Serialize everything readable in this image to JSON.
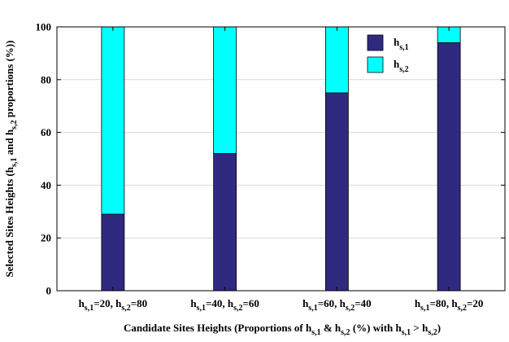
{
  "chart_data": {
    "type": "bar",
    "stacked": true,
    "categories": [
      {
        "h1": "h",
        "s1": "s,1",
        "v1": "=20, ",
        "h2": "h",
        "s2": "s,2",
        "v2": "=80"
      },
      {
        "h1": "h",
        "s1": "s,1",
        "v1": "=40, ",
        "h2": "h",
        "s2": "s,2",
        "v2": "=60"
      },
      {
        "h1": "h",
        "s1": "s,1",
        "v1": "=60, ",
        "h2": "h",
        "s2": "s,2",
        "v2": "=40"
      },
      {
        "h1": "h",
        "s1": "s,1",
        "v1": "=80, ",
        "h2": "h",
        "s2": "s,2",
        "v2": "=20"
      }
    ],
    "series": [
      {
        "name_base": "h",
        "name_sub": "s,1",
        "color": "#2f2a7f",
        "values": [
          29,
          52,
          75,
          94
        ]
      },
      {
        "name_base": "h",
        "name_sub": "s,2",
        "color": "#00ffff",
        "values": [
          71,
          48,
          25,
          6
        ]
      }
    ],
    "ylim": [
      0,
      100
    ],
    "yticks": [
      "0",
      "20",
      "40",
      "60",
      "80",
      "100"
    ],
    "grid": "horizontal",
    "legend_position": "top-right",
    "xlabel": {
      "p1": "Candidate Sites Heights (Proportions of h",
      "s1": "s,1",
      "p2": " & h",
      "s2": "s,2",
      "p3": " (%)  with h",
      "s3": "s,1",
      "p4": " > h",
      "s4": "s,2",
      "p5": ")"
    },
    "ylabel": {
      "p1": "Selected Sites Heights  (h",
      "s1": "s,1",
      "p2": "  and h",
      "s2": "s,2",
      "p3": " proportions (%))"
    }
  }
}
